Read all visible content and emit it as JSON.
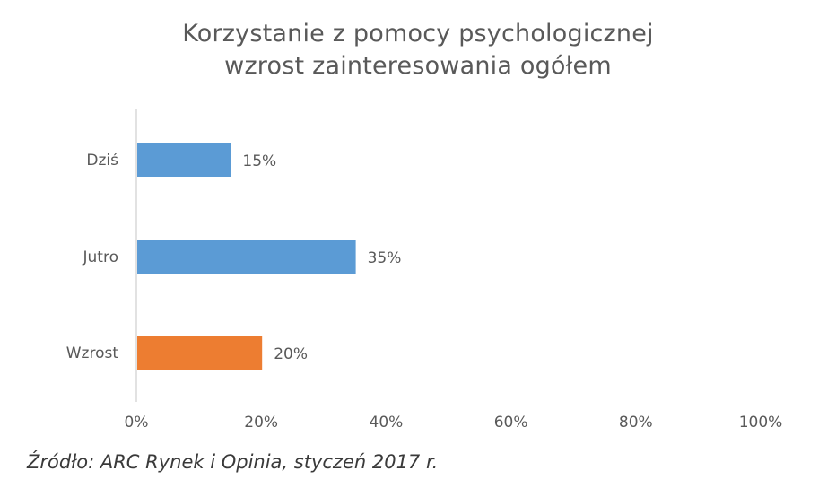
{
  "chart_data": {
    "type": "bar",
    "orientation": "horizontal",
    "title": "Korzystanie z pomocy psychologicznej",
    "subtitle": "wzrost zainteresowania ogółem",
    "categories": [
      "Dziś",
      "Jutro",
      "Wzrost"
    ],
    "values": [
      15,
      35,
      20
    ],
    "value_labels": [
      "15%",
      "35%",
      "20%"
    ],
    "bar_colors": [
      "#5B9BD5",
      "#5B9BD5",
      "#ED7D31"
    ],
    "xlim": [
      0,
      100
    ],
    "x_ticks": [
      0,
      20,
      40,
      60,
      80,
      100
    ],
    "x_tick_labels": [
      "0%",
      "20%",
      "40%",
      "60%",
      "80%",
      "100%"
    ],
    "grid": false,
    "legend": false,
    "xlabel": "",
    "ylabel": ""
  },
  "source_note": "Źródło: ARC Rynek i Opinia, styczeń 2017 r."
}
